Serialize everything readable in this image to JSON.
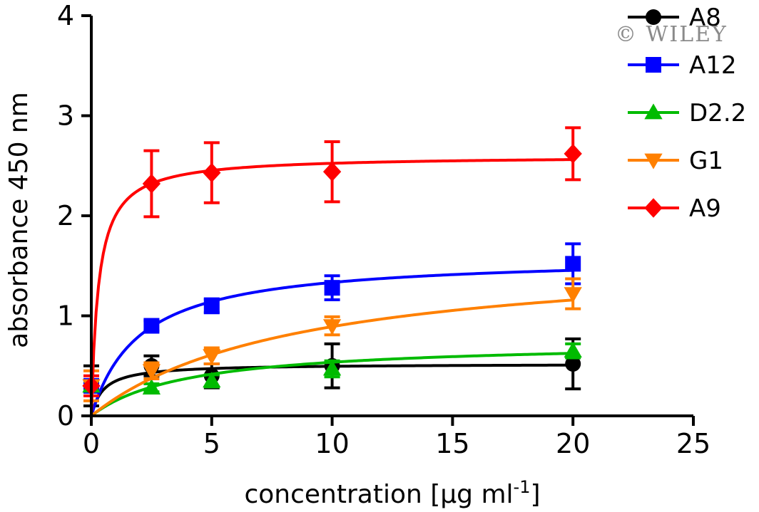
{
  "watermark": "© WILEY",
  "chart_data": {
    "type": "scatter",
    "title": "",
    "xlabel": "concentration [µg ml",
    "xlabel_sup": "-1",
    "xlabel_close": "]",
    "ylabel": "absorbance 450 nm",
    "xlim": [
      0,
      25
    ],
    "ylim": [
      0,
      4
    ],
    "x_ticks": [
      "0",
      "5",
      "10",
      "15",
      "20",
      "25"
    ],
    "y_ticks": [
      "0",
      "1",
      "2",
      "3",
      "4"
    ],
    "grid": false,
    "legend_position": "top-right",
    "fit_model": "saturation binding (Bmax·x/(Kd+x)) fitted curves",
    "series": [
      {
        "name": "A8",
        "color": "#000000",
        "marker": "circle",
        "x": [
          0,
          2.5,
          5,
          10,
          20
        ],
        "y": [
          0.3,
          0.5,
          0.4,
          0.5,
          0.52
        ],
        "err": [
          0.2,
          0.1,
          0.12,
          0.22,
          0.25
        ],
        "fit_bmax": 0.52,
        "fit_kd": 0.5
      },
      {
        "name": "A12",
        "color": "#0000ff",
        "marker": "square",
        "x": [
          0,
          2.5,
          5,
          10,
          20
        ],
        "y": [
          0.3,
          0.9,
          1.1,
          1.28,
          1.52
        ],
        "err": [
          0.05,
          0.05,
          0.07,
          0.12,
          0.2
        ],
        "fit_bmax": 1.6,
        "fit_kd": 2.0
      },
      {
        "name": "D2.2",
        "color": "#00bb00",
        "marker": "triangle-up",
        "x": [
          0,
          2.5,
          5,
          10,
          20
        ],
        "y": [
          0.3,
          0.28,
          0.35,
          0.47,
          0.65
        ],
        "err": [
          0.05,
          0.04,
          0.06,
          0.08,
          0.07
        ],
        "fit_bmax": 0.75,
        "fit_kd": 4.0
      },
      {
        "name": "G1",
        "color": "#ff8000",
        "marker": "triangle-down",
        "x": [
          0,
          2.5,
          5,
          10,
          20
        ],
        "y": [
          0.3,
          0.45,
          0.6,
          0.9,
          1.22
        ],
        "err": [
          0.15,
          0.08,
          0.08,
          0.09,
          0.15
        ],
        "fit_bmax": 1.65,
        "fit_kd": 8.5
      },
      {
        "name": "A9",
        "color": "#ff0000",
        "marker": "diamond",
        "x": [
          0,
          2.5,
          5,
          10,
          20
        ],
        "y": [
          0.3,
          2.32,
          2.43,
          2.44,
          2.62
        ],
        "err": [
          0.1,
          0.33,
          0.3,
          0.3,
          0.26
        ],
        "fit_bmax": 2.6,
        "fit_kd": 0.3
      }
    ]
  }
}
